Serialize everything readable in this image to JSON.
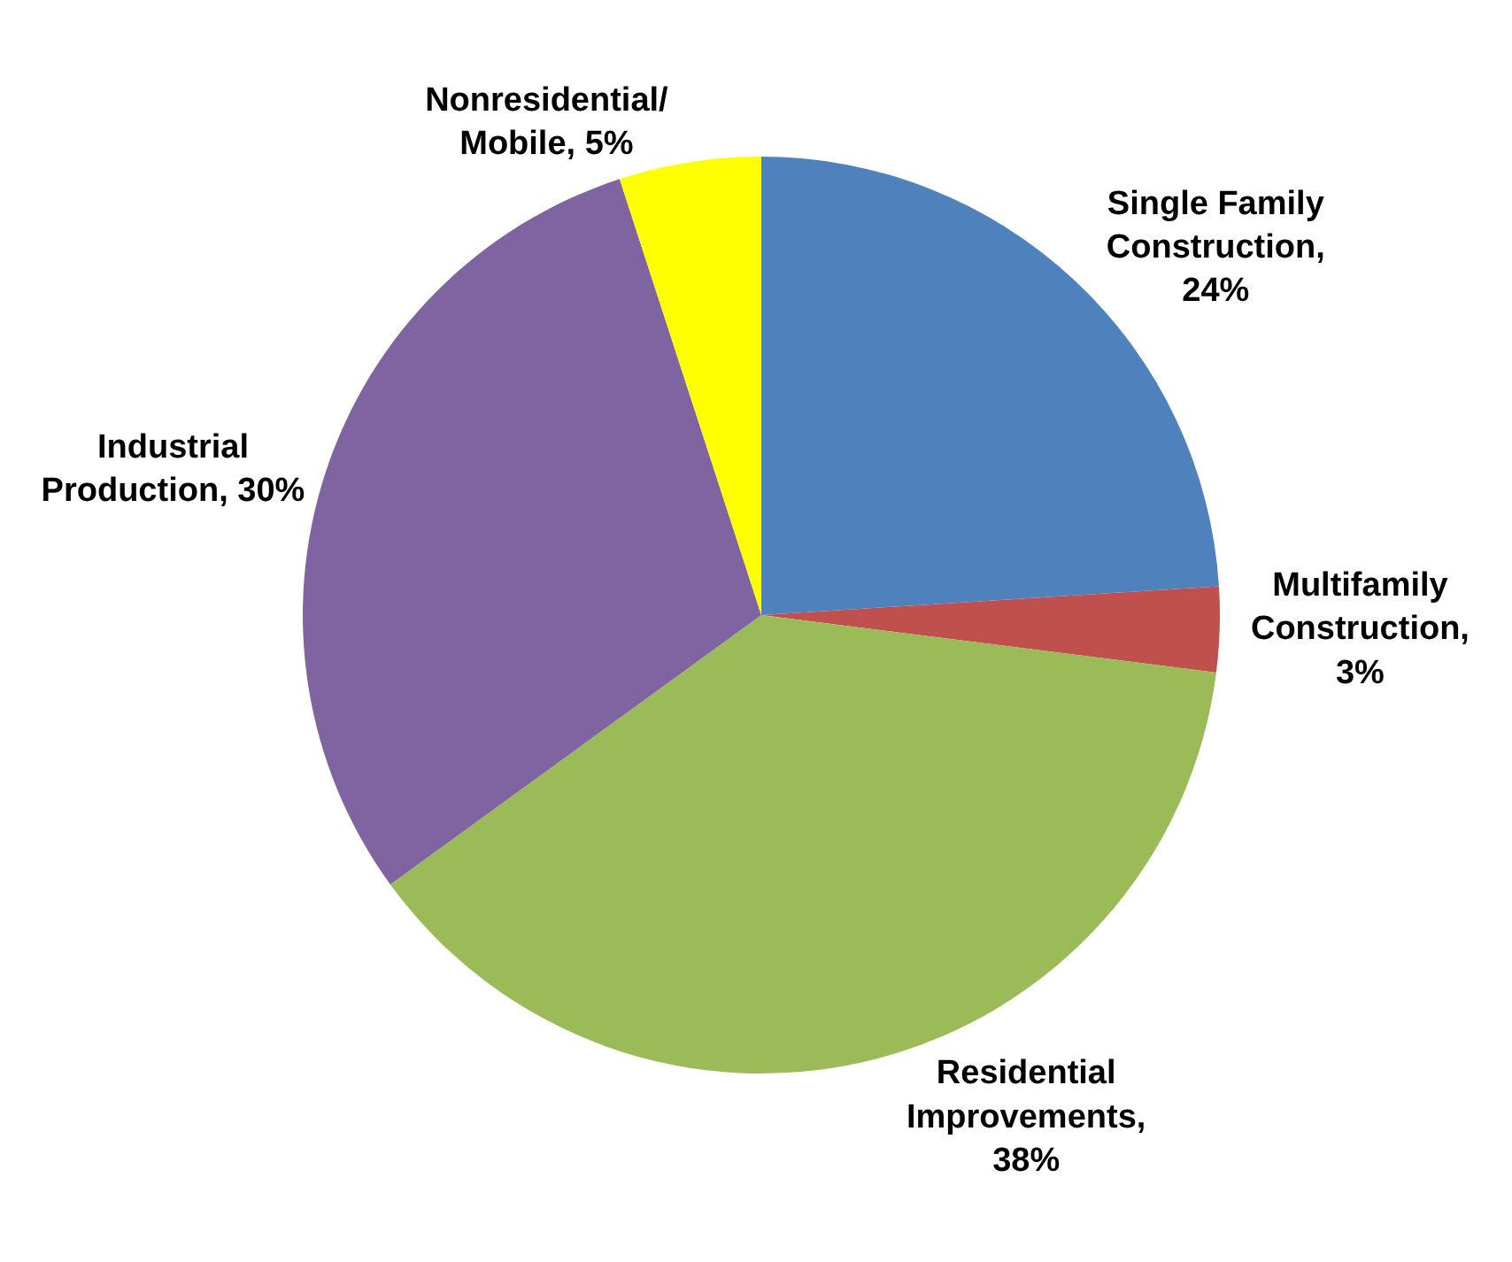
{
  "chart_data": {
    "type": "pie",
    "categories": [
      "Single Family Construction, 24%",
      "Multifamily Construction, 3%",
      "Residential Improvements, 38%",
      "Industrial Production, 30%",
      "Nonresidential/Mobile, 5%"
    ],
    "values": [
      24,
      3,
      38,
      30,
      5
    ],
    "colors": [
      "#4f81bd",
      "#c0504d",
      "#9bbb59",
      "#8064a2",
      "#ffff00"
    ],
    "legend": false
  }
}
